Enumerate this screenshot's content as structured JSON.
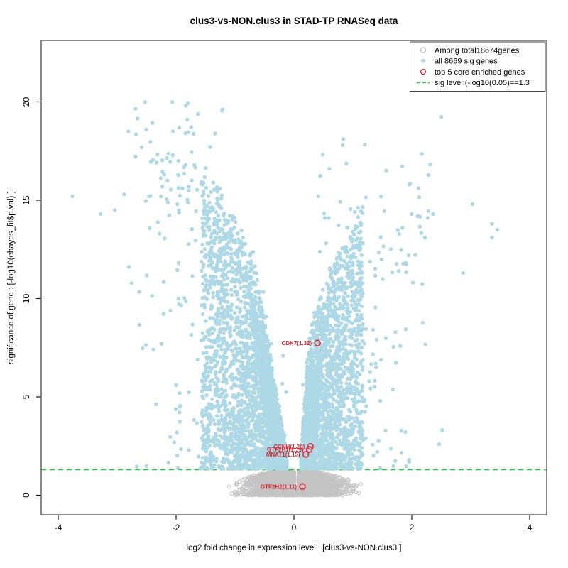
{
  "title": "clus3-vs-NON.clus3 in STAD-TP RNASeq data",
  "colors": {
    "sig_point": "#ADD8E6",
    "nonsig_point": "#C3C3C3",
    "enriched": "#E62129",
    "sig_line": "#00DD26",
    "box": "#6e6e6e",
    "tick": "#1a1a1a",
    "text": "#000000"
  },
  "chart_data": {
    "type": "scatter",
    "subtype": "volcano",
    "title": "clus3-vs-NON.clus3 in STAD-TP RNASeq data",
    "xlabel": "log2 fold change in expression level : [clus3-vs-NON.clus3 ]",
    "ylabel": "significance of gene : [-log10(ebayes_fit$p.val) ]",
    "xlim": [
      -4.3,
      4.3
    ],
    "ylim": [
      -1.0,
      23.1
    ],
    "x_ticks": [
      -4,
      -2,
      0,
      2,
      4
    ],
    "y_ticks": [
      0,
      5,
      10,
      15,
      20
    ],
    "grid": false,
    "legend": {
      "position": "top-right",
      "entries": [
        {
          "label": "Among total18674genes",
          "marker": "open-circle",
          "color": "#C3C3C3"
        },
        {
          "label": "all 8669 sig genes",
          "marker": "filled-circle",
          "color": "#ADD8E6"
        },
        {
          "label": "top 5 core enriched genes",
          "marker": "open-circle",
          "color": "#E62129"
        },
        {
          "label": "sig level:(-log10(0.05)==1.3",
          "marker": "dashed-line",
          "color": "#00DD26"
        }
      ]
    },
    "sig_line": {
      "y": 1.3,
      "style": "dashed",
      "label": "sig level:(-log10(0.05)==1.3"
    },
    "series_meta": [
      {
        "name": "Among total18674genes",
        "role": "all genes (non significant shown gray)",
        "marker": "open-circle"
      },
      {
        "name": "all 8669 sig genes",
        "role": "significant genes",
        "marker": "filled-circle"
      },
      {
        "name": "top 5 core enriched genes",
        "role": "core enriched",
        "marker": "open-circle-red"
      }
    ],
    "top_genes": [
      {
        "gene": "CDK7",
        "value": "1.32",
        "x": 0.4,
        "y": 7.74
      },
      {
        "gene": "CCNH",
        "value": "1.20",
        "x": 0.28,
        "y": 2.48
      },
      {
        "gene": "GTF2H1",
        "value": "1.19",
        "x": 0.26,
        "y": 2.33
      },
      {
        "gene": "MNAT1",
        "value": "1.15",
        "x": 0.2,
        "y": 2.08
      },
      {
        "gene": "GTF2H2",
        "value": "1.11",
        "x": 0.145,
        "y": 0.44
      }
    ],
    "outlier_points": [
      [
        -3.76,
        15.2
      ],
      [
        -3.28,
        14.3
      ],
      [
        -3.04,
        14.5
      ],
      [
        -2.88,
        15.3
      ],
      [
        -2.81,
        18.5
      ],
      [
        -2.46,
        15.2
      ],
      [
        -2.2,
        16.3
      ],
      [
        3.36,
        13.8
      ],
      [
        3.45,
        13.5
      ],
      [
        3.36,
        13.1
      ],
      [
        3.03,
        14.8
      ],
      [
        2.87,
        11.3
      ],
      [
        2.36,
        14.3
      ],
      [
        2.27,
        14.1
      ],
      [
        1.96,
        15.8
      ],
      [
        1.84,
        13.6
      ]
    ],
    "point_cloud": {
      "seed": 42,
      "sig_count": 5200,
      "nonsig_count": 3000,
      "high_left_count": 62,
      "high_right_count": 40,
      "left_fraction": 0.56,
      "m_min": 0.12,
      "left_spread": 1.45,
      "right_spread": 1.05,
      "envelope_base": 2.0,
      "envelope_scale": 11.5,
      "envelope_cap": 20.3,
      "wedge_left_slope": 0.055,
      "wedge_right_slope": 0.023,
      "gray_sigma": 0.45,
      "gray_max_x": 1.65,
      "gray_top": 1.29
    }
  }
}
